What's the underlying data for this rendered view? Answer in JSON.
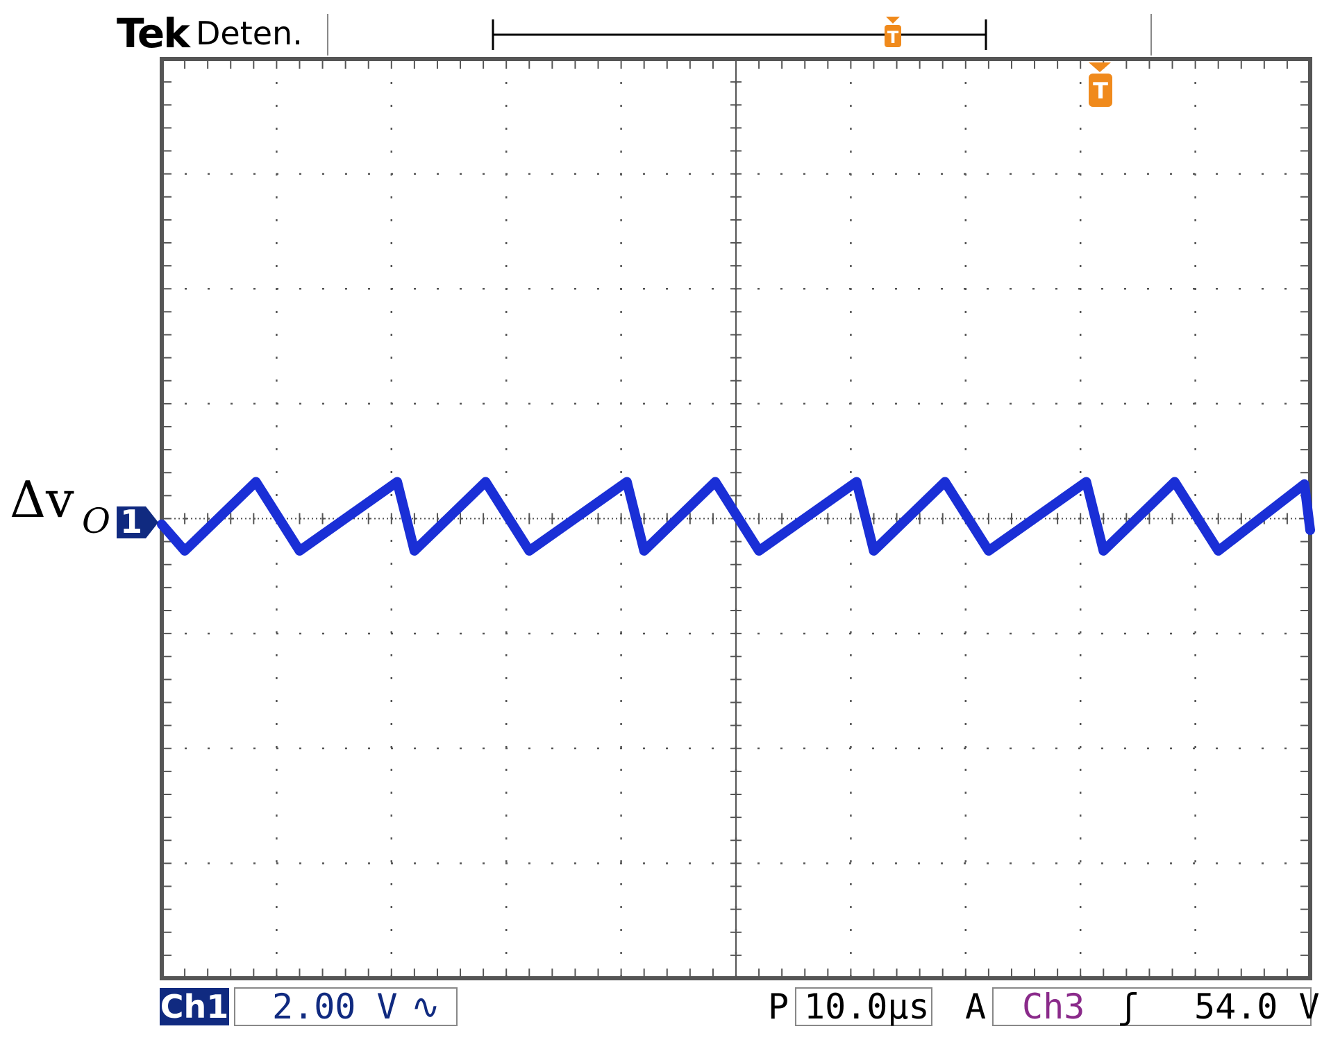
{
  "header": {
    "brand": "Tek",
    "acq_state": "Deten."
  },
  "trace": {
    "label_symbol": "Δv",
    "label_sub": "O",
    "channel_marker": "1",
    "color": "#1a2fd6"
  },
  "readout": {
    "ch1_tag": "Ch1",
    "ch1_scale": "2.00 V",
    "ch1_coupling": "∿",
    "period_label": "P",
    "timebase": "10.0µs",
    "trigger_mode": "A",
    "trigger_source": "Ch3",
    "trigger_slope": "ʃ",
    "trigger_level": "54.0 V"
  },
  "colors": {
    "grid": "#555555",
    "frame": "#555555",
    "trigger_marker": "#f08a1c",
    "ch1_tag": "#102a80",
    "ch3": "#8a2a8a"
  },
  "chart_data": {
    "type": "line",
    "x_unit": "div",
    "y_unit": "div",
    "xlim": [
      0,
      10
    ],
    "ylim": [
      -4,
      4
    ],
    "grid": true,
    "series": [
      {
        "x": [
          0.0,
          0.2,
          0.82,
          1.2,
          2.05,
          2.2,
          2.82,
          3.2,
          4.05,
          4.2,
          4.82,
          5.2,
          6.05,
          6.2,
          6.82,
          7.2,
          8.05,
          8.2,
          8.82,
          9.2,
          9.95,
          10.0
        ],
        "y": [
          -0.05,
          -0.28,
          0.32,
          -0.28,
          0.32,
          -0.28,
          0.32,
          -0.28,
          0.32,
          -0.28,
          0.32,
          -0.28,
          0.32,
          -0.28,
          0.32,
          -0.28,
          0.32,
          -0.28,
          0.32,
          -0.28,
          0.3,
          -0.1
        ]
      }
    ]
  }
}
